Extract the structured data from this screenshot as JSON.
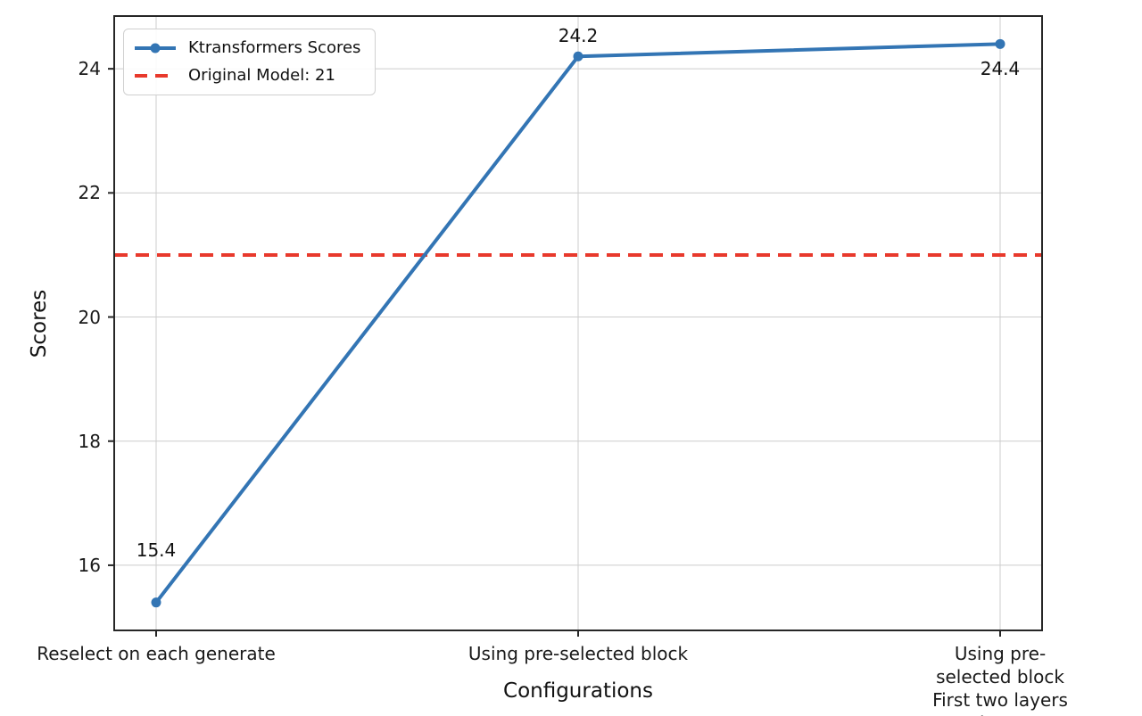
{
  "chart_data": {
    "type": "line",
    "title": "",
    "xlabel": "Configurations",
    "ylabel": "Scores",
    "categories": [
      "Reselect on each generate",
      "Using pre-selected block",
      "Using pre-selected block\nFirst two layers dense"
    ],
    "series": [
      {
        "name": "Ktransformers Scores",
        "values": [
          15.4,
          24.2,
          24.4
        ],
        "color": "#3375b4",
        "marker": "circle",
        "point_labels": [
          "15.4",
          "24.2",
          "24.4"
        ]
      }
    ],
    "reference_line": {
      "label": "Original Model: 21",
      "value": 21,
      "color": "#e8392c",
      "style": "dashed"
    },
    "yticks": [
      "16",
      "18",
      "20",
      "22",
      "24"
    ],
    "ytick_values": [
      16,
      18,
      20,
      22,
      24
    ],
    "ylim": [
      14.95,
      24.85
    ],
    "grid": true,
    "grid_color": "#cccccc",
    "spine_color": "#262626",
    "legend_position": "upper left",
    "legend": {
      "items": [
        {
          "label": "Ktransformers Scores",
          "sample": "line-with-marker",
          "color": "#3375b4"
        },
        {
          "label": "Original Model: 21",
          "sample": "dashed-line",
          "color": "#e8392c"
        }
      ]
    }
  }
}
